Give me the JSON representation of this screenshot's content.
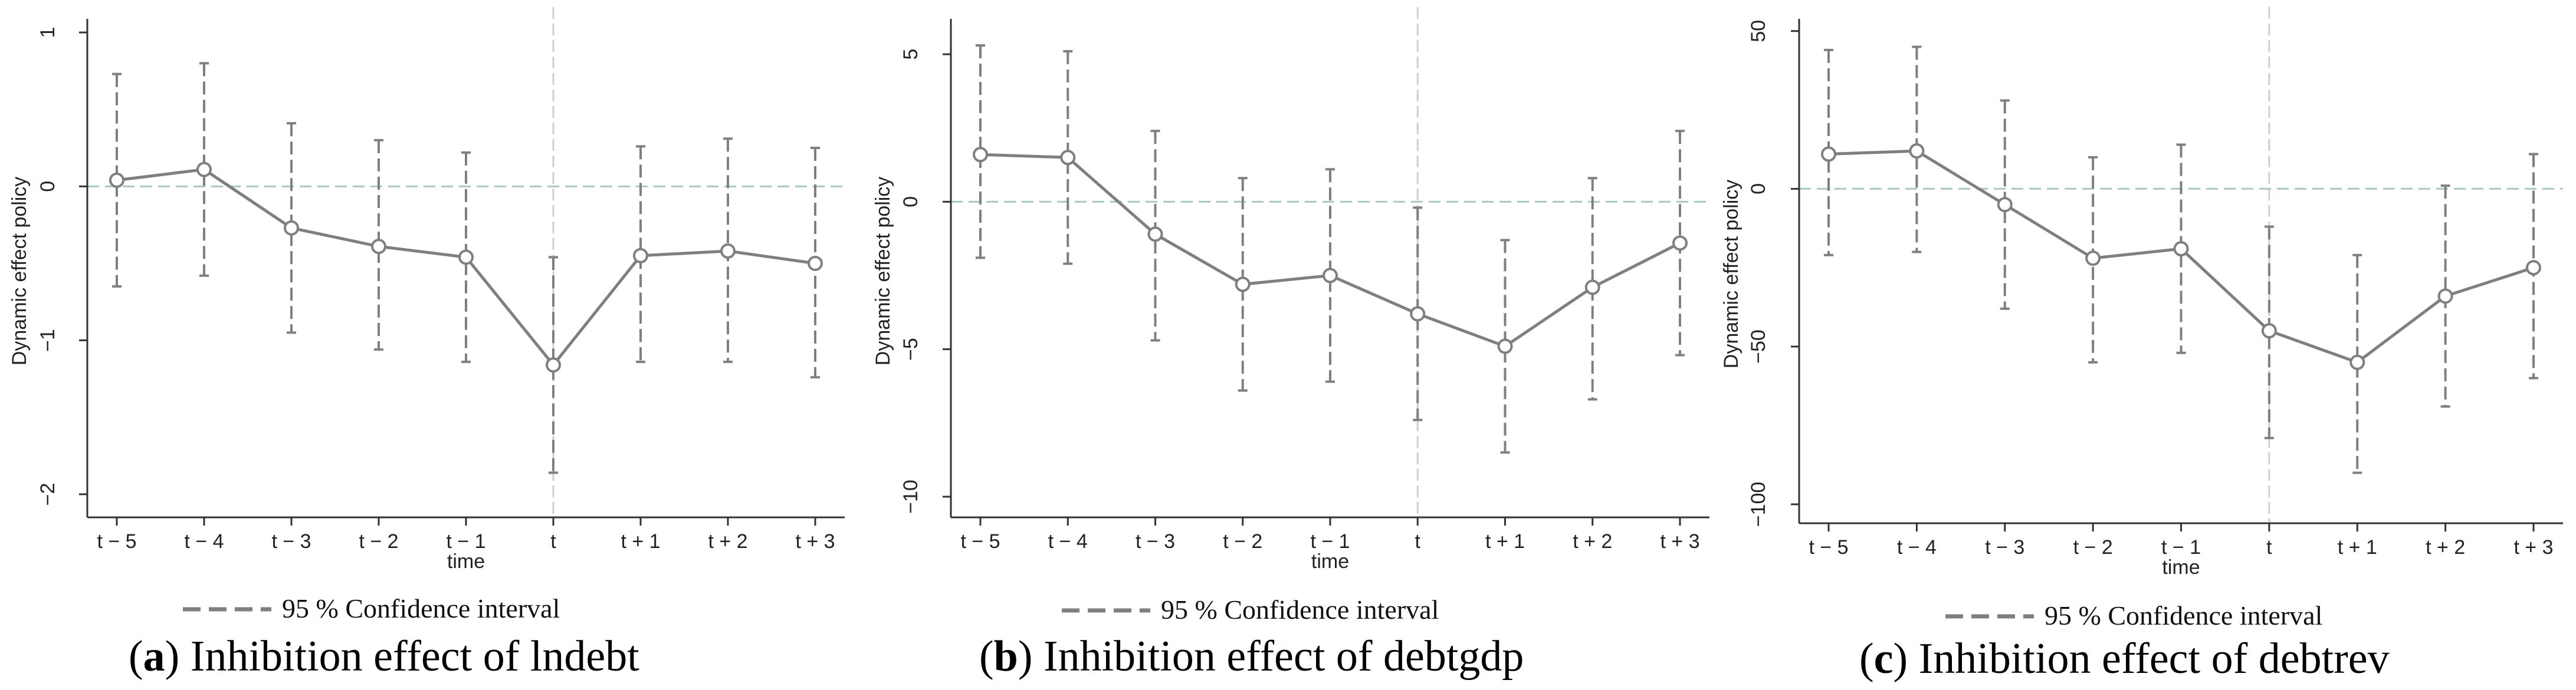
{
  "chart_data": [
    {
      "type": "line",
      "panel": "a",
      "caption_letter": "a",
      "caption_text": "Inhibition effect of lndebt",
      "x": [
        "t − 5",
        "t − 4",
        "t − 3",
        "t − 2",
        "t − 1",
        "t",
        "t + 1",
        "t + 2",
        "t + 3"
      ],
      "values": [
        0.04,
        0.11,
        -0.27,
        -0.39,
        -0.46,
        -1.16,
        -0.45,
        -0.42,
        -0.5
      ],
      "ci_lower": [
        -0.65,
        -0.58,
        -0.95,
        -1.06,
        -1.14,
        -1.86,
        -1.14,
        -1.14,
        -1.24
      ],
      "ci_upper": [
        0.73,
        0.8,
        0.41,
        0.3,
        0.22,
        -0.46,
        0.26,
        0.31,
        0.25
      ],
      "xlabel": "time",
      "ylabel": "Dynamic effect policy",
      "ylim": [
        -2.15,
        1.05
      ],
      "yticks": [
        1,
        0,
        -1,
        -2
      ],
      "ytick_labels": [
        "1",
        "0",
        "−1",
        "−2"
      ],
      "event_index": 5,
      "legend": "95 % Confidence interval"
    },
    {
      "type": "line",
      "panel": "b",
      "caption_letter": "b",
      "caption_text": "Inhibition effect of debtgdp",
      "x": [
        "t − 5",
        "t − 4",
        "t − 3",
        "t − 2",
        "t − 1",
        "t",
        "t + 1",
        "t + 2",
        "t + 3"
      ],
      "values": [
        1.6,
        1.5,
        -1.1,
        -2.8,
        -2.5,
        -3.8,
        -4.9,
        -2.9,
        -1.4
      ],
      "ci_lower": [
        -1.9,
        -2.1,
        -4.7,
        -6.4,
        -6.1,
        -7.4,
        -8.5,
        -6.7,
        -5.2
      ],
      "ci_upper": [
        5.3,
        5.1,
        2.4,
        0.8,
        1.1,
        -0.2,
        -1.3,
        0.8,
        2.4
      ],
      "xlabel": "time",
      "ylabel": "Dynamic effect policy",
      "ylim": [
        -10.7,
        6.0
      ],
      "yticks": [
        5,
        0,
        -5,
        -10
      ],
      "ytick_labels": [
        "5",
        "0",
        "−5",
        "−10"
      ],
      "event_index": 5,
      "legend": "95 % Confidence interval"
    },
    {
      "type": "line",
      "panel": "c",
      "caption_letter": "c",
      "caption_text": "Inhibition effect of debtrev",
      "x": [
        "t − 5",
        "t − 4",
        "t − 3",
        "t − 2",
        "t − 1",
        "t",
        "t + 1",
        "t + 2",
        "t + 3"
      ],
      "values": [
        11,
        12,
        -5,
        -22,
        -19,
        -45,
        -55,
        -34,
        -25
      ],
      "ci_lower": [
        -21,
        -20,
        -38,
        -55,
        -52,
        -79,
        -90,
        -69,
        -60
      ],
      "ci_upper": [
        44,
        45,
        28,
        10,
        14,
        -12,
        -21,
        1,
        11
      ],
      "xlabel": "time",
      "ylabel": "Dynamic effect policy",
      "ylim": [
        -106,
        52
      ],
      "yticks": [
        50,
        0,
        -50,
        -100
      ],
      "ytick_labels": [
        "50",
        "0",
        "−50",
        "−100"
      ],
      "event_index": 5,
      "legend": "95 % Confidence interval"
    }
  ],
  "colors": {
    "series": "#7f7f7f",
    "ci": "#7f7f7f",
    "zero_line": "#a8c8c8",
    "event_line": "#cfcfcf",
    "axis": "#333333"
  }
}
